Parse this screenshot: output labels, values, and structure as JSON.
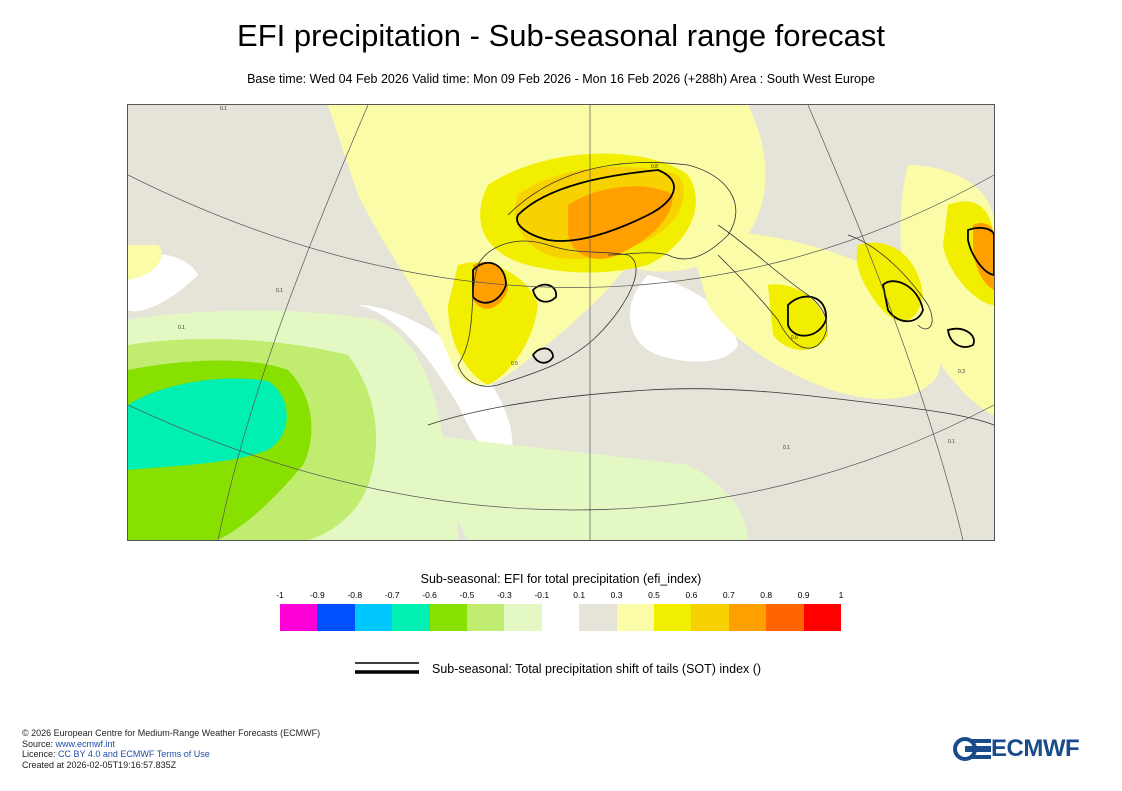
{
  "header": {
    "title": "EFI precipitation - Sub-seasonal range forecast",
    "subtitle": "Base time: Wed 04 Feb 2026 Valid time: Mon 09 Feb 2026 - Mon 16 Feb 2026 (+288h) Area : South West Europe"
  },
  "map": {
    "area": "South West Europe",
    "contour_labels": [
      "0.1",
      "0.3",
      "0.5",
      "0.6",
      "0.8"
    ]
  },
  "legend": {
    "title": "Sub-seasonal: EFI for total precipitation (efi_index)",
    "ticks": [
      "-1",
      "-0.9",
      "-0.8",
      "-0.7",
      "-0.6",
      "-0.5",
      "-0.3",
      "-0.1",
      "0.1",
      "0.3",
      "0.5",
      "0.6",
      "0.7",
      "0.8",
      "0.9",
      "1"
    ],
    "colors": [
      "#ff00d8",
      "#0050ff",
      "#00c8ff",
      "#00f0b4",
      "#88e000",
      "#c0ec70",
      "#e4f8c4",
      "#ffffff",
      "#e6e4d8",
      "#fbfca8",
      "#f2ee00",
      "#f8d200",
      "#ffa000",
      "#ff6400",
      "#ff0000"
    ],
    "sot_label": "Sub-seasonal: Total precipitation shift of tails (SOT) index ()"
  },
  "footer": {
    "copyright": "© 2026 European Centre for Medium-Range Weather Forecasts (ECMWF)",
    "source_prefix": "Source: ",
    "source_link": "www.ecmwf.int",
    "licence_prefix": "Licence: ",
    "licence_link": "CC BY 4.0 and ECMWF Terms of Use",
    "created": "Created at 2026-02-05T19:16:57.835Z"
  },
  "logo": {
    "text": "ECMWF",
    "color": "#1a4c8c"
  }
}
